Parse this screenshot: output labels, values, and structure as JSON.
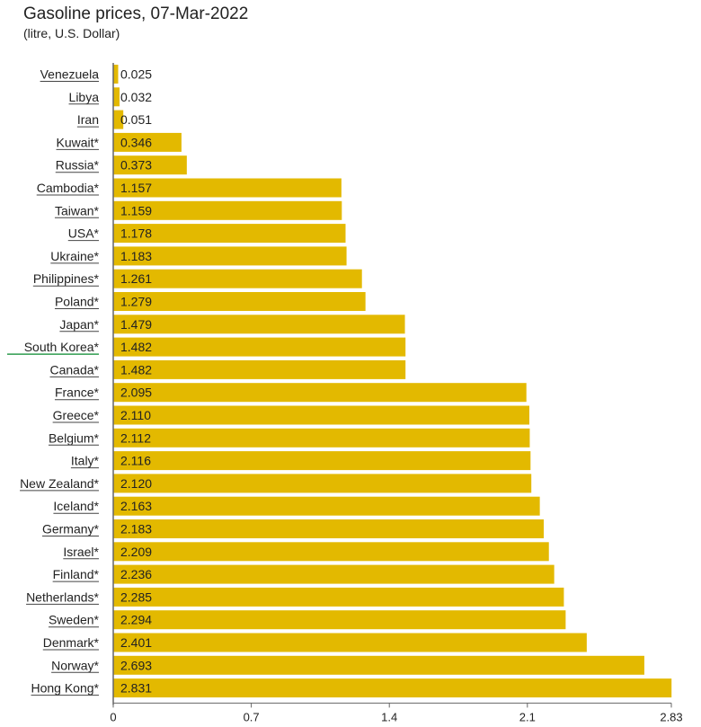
{
  "chart_data": {
    "type": "bar",
    "orientation": "horizontal",
    "title": "Gasoline prices, 07-Mar-2022",
    "subtitle": "(litre, U.S. Dollar)",
    "xlabel": "",
    "ylabel": "",
    "xlim": [
      0,
      2.83
    ],
    "xticks": [
      "0",
      "0.7",
      "1.4",
      "2.1",
      "2.83"
    ],
    "xtick_values": [
      0,
      0.7,
      1.4,
      2.1,
      2.83
    ],
    "bar_color": "#e3b900",
    "highlight_underline_color": "#2e9b4e",
    "highlighted_category": "South Korea*",
    "categories": [
      "Venezuela",
      "Libya",
      "Iran",
      "Kuwait*",
      "Russia*",
      "Cambodia*",
      "Taiwan*",
      "USA*",
      "Ukraine*",
      "Philippines*",
      "Poland*",
      "Japan*",
      "South Korea*",
      "Canada*",
      "France*",
      "Greece*",
      "Belgium*",
      "Italy*",
      "New Zealand*",
      "Iceland*",
      "Germany*",
      "Israel*",
      "Finland*",
      "Netherlands*",
      "Sweden*",
      "Denmark*",
      "Norway*",
      "Hong Kong*"
    ],
    "values": [
      0.025,
      0.032,
      0.051,
      0.346,
      0.373,
      1.157,
      1.159,
      1.178,
      1.183,
      1.261,
      1.279,
      1.479,
      1.482,
      1.482,
      2.095,
      2.11,
      2.112,
      2.116,
      2.12,
      2.163,
      2.183,
      2.209,
      2.236,
      2.285,
      2.294,
      2.401,
      2.693,
      2.831
    ],
    "value_labels": [
      "0.025",
      "0.032",
      "0.051",
      "0.346",
      "0.373",
      "1.157",
      "1.159",
      "1.178",
      "1.183",
      "1.261",
      "1.279",
      "1.479",
      "1.482",
      "1.482",
      "2.095",
      "2.110",
      "2.112",
      "2.116",
      "2.120",
      "2.163",
      "2.183",
      "2.209",
      "2.236",
      "2.285",
      "2.294",
      "2.401",
      "2.693",
      "2.831"
    ]
  }
}
